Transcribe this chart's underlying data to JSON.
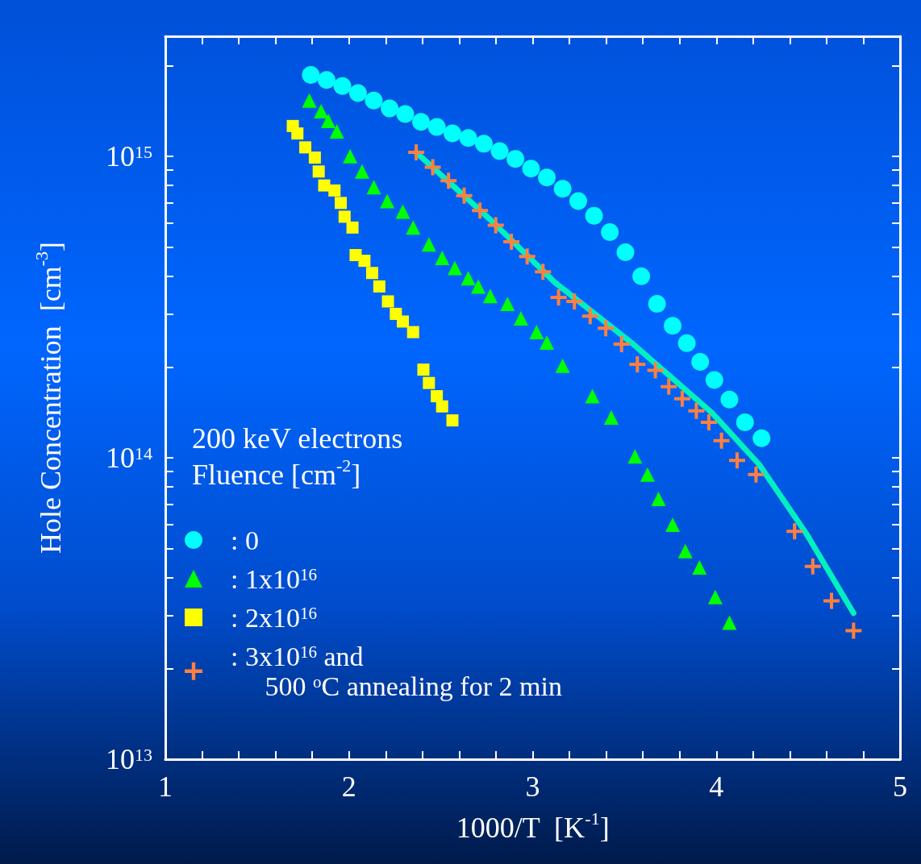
{
  "chart_data": {
    "type": "scatter",
    "xlabel": "1000/T  [K$^{-1}$]",
    "ylabel": "Hole Concentration  [cm$^{-3}$]",
    "legend_title": "200 keV electrons\nFluence [cm$^{-2}$]",
    "log": "y",
    "legend": "bottom left",
    "grid": false,
    "xlim": [
      1,
      5
    ],
    "xticks": [
      1,
      {
        "value": 1.2,
        "label": null
      },
      {
        "value": 1.4,
        "label": null
      },
      {
        "value": 1.6,
        "label": null
      },
      {
        "value": 1.8,
        "label": null
      },
      2,
      {
        "value": 2.2,
        "label": null
      },
      {
        "value": 2.4,
        "label": null
      },
      {
        "value": 2.6,
        "label": null
      },
      {
        "value": 2.8,
        "label": null
      },
      3,
      {
        "value": 3.2,
        "label": null
      },
      {
        "value": 3.4,
        "label": null
      },
      {
        "value": 3.6,
        "label": null
      },
      {
        "value": 3.8,
        "label": null
      },
      4,
      {
        "value": 4.2,
        "label": null
      },
      {
        "value": 4.4,
        "label": null
      },
      {
        "value": 4.6,
        "label": null
      },
      {
        "value": 4.8,
        "label": null
      },
      5
    ],
    "ylim": [
      10000000000000.0,
      2500000000000000.0
    ],
    "yticks": [
      {
        "value": 10000000000000.0,
        "label": "10$^{13}$"
      },
      {
        "value": 20000000000000.0,
        "label": null
      },
      {
        "value": 30000000000000.0,
        "label": null
      },
      {
        "value": 40000000000000.0,
        "label": null
      },
      {
        "value": 50000000000000.0,
        "label": null
      },
      {
        "value": 60000000000000.0,
        "label": null
      },
      {
        "value": 70000000000000.0,
        "label": null
      },
      {
        "value": 80000000000000.0,
        "label": null
      },
      {
        "value": 90000000000000.0,
        "label": null
      },
      {
        "value": 100000000000000.0,
        "label": "10$^{14}$"
      },
      {
        "value": 200000000000000.0,
        "label": null
      },
      {
        "value": 300000000000000.0,
        "label": null
      },
      {
        "value": 400000000000000.0,
        "label": null
      },
      {
        "value": 500000000000000.0,
        "label": null
      },
      {
        "value": 600000000000000.0,
        "label": null
      },
      {
        "value": 700000000000000.0,
        "label": null
      },
      {
        "value": 800000000000000.0,
        "label": null
      },
      {
        "value": 900000000000000.0,
        "label": null
      },
      {
        "value": 1000000000000000.0,
        "label": "10$^{15}$"
      },
      {
        "value": 2000000000000000.0,
        "label": null
      }
    ],
    "series": [
      {
        "name": ": 0",
        "color": "#00ffff",
        "marker": "circle",
        "x": [
          1.792,
          1.878,
          1.964,
          2.049,
          2.135,
          2.221,
          2.306,
          2.392,
          2.478,
          2.563,
          2.649,
          2.734,
          2.82,
          2.906,
          2.991,
          3.077,
          3.163,
          3.248,
          3.334,
          3.42,
          3.505,
          3.591,
          3.677,
          3.762,
          3.839,
          3.912,
          3.989,
          4.071,
          4.156,
          4.246
        ],
        "values": [
          1860000000000000.0,
          1790000000000000.0,
          1710000000000000.0,
          1620000000000000.0,
          1530000000000000.0,
          1440000000000000.0,
          1380000000000000.0,
          1300000000000000.0,
          1250000000000000.0,
          1190000000000000.0,
          1150000000000000.0,
          1100000000000000.0,
          1040000000000000.0,
          980000000000000.0,
          910000000000000.0,
          850000000000000.0,
          780000000000000.0,
          710000000000000.0,
          635000000000000.0,
          560000000000000.0,
          480000000000000.0,
          400000000000000.0,
          324000000000000.0,
          274000000000000.0,
          240000000000000.0,
          208000000000000.0,
          181000000000000.0,
          156000000000000.0,
          131000000000000.0,
          116000000000000.0
        ]
      },
      {
        "name": ": 1x10$^{16}$",
        "color": "#00ff00",
        "marker": "triangle",
        "x": [
          1.784,
          1.848,
          1.887,
          1.934,
          2.006,
          2.071,
          2.135,
          2.208,
          2.293,
          2.349,
          2.435,
          2.507,
          2.576,
          2.649,
          2.704,
          2.769,
          2.863,
          2.936,
          3.021,
          3.077,
          3.163,
          3.325,
          3.428,
          3.557,
          3.625,
          3.685,
          3.762,
          3.831,
          3.908,
          3.994,
          4.071
        ],
        "values": [
          1530000000000000.0,
          1410000000000000.0,
          1310000000000000.0,
          1210000000000000.0,
          1000000000000000.0,
          890000000000000.0,
          790000000000000.0,
          710000000000000.0,
          655000000000000.0,
          580000000000000.0,
          510000000000000.0,
          460000000000000.0,
          426000000000000.0,
          394000000000000.0,
          370000000000000.0,
          344000000000000.0,
          324000000000000.0,
          290000000000000.0,
          261000000000000.0,
          241000000000000.0,
          202000000000000.0,
          160000000000000.0,
          136000000000000.0,
          101000000000000.0,
          88000000000000.0,
          73000000000000.0,
          60000000000000.0,
          49000000000000.0,
          43300000000000.0,
          34500000000000.0,
          28400000000000.0
        ]
      },
      {
        "name": ": 2x10$^{16}$",
        "color": "#ffff00",
        "marker": "square",
        "x": [
          1.694,
          1.719,
          1.762,
          1.814,
          1.835,
          1.865,
          1.921,
          1.955,
          1.976,
          2.019,
          2.036,
          2.084,
          2.126,
          2.165,
          2.212,
          2.255,
          2.293,
          2.349,
          2.405,
          2.435,
          2.478,
          2.507,
          2.563
        ],
        "values": [
          1260000000000000.0,
          1190000000000000.0,
          1070000000000000.0,
          990000000000000.0,
          890000000000000.0,
          800000000000000.0,
          770000000000000.0,
          700000000000000.0,
          630000000000000.0,
          580000000000000.0,
          470000000000000.0,
          450000000000000.0,
          410000000000000.0,
          370000000000000.0,
          330000000000000.0,
          300000000000000.0,
          283000000000000.0,
          261000000000000.0,
          196000000000000.0,
          177000000000000.0,
          160000000000000.0,
          148000000000000.0,
          133000000000000.0
        ]
      },
      {
        "name": ": 3x10$^{16}$ and\n     500 $^{o}$C annealing for 2 min",
        "color": "#ff8040",
        "marker": "cross",
        "x": [
          2.366,
          2.456,
          2.542,
          2.627,
          2.713,
          2.799,
          2.884,
          2.97,
          3.056,
          3.141,
          3.227,
          3.313,
          3.398,
          3.484,
          3.57,
          3.668,
          3.741,
          3.814,
          3.891,
          3.959,
          4.028,
          4.113,
          4.216,
          4.426,
          4.525,
          4.627,
          4.747
        ],
        "values": [
          1030000000000000.0,
          920000000000000.0,
          830000000000000.0,
          740000000000000.0,
          660000000000000.0,
          590000000000000.0,
          520000000000000.0,
          465000000000000.0,
          414000000000000.0,
          340000000000000.0,
          330000000000000.0,
          295000000000000.0,
          269000000000000.0,
          238000000000000.0,
          204000000000000.0,
          195000000000000.0,
          172000000000000.0,
          157000000000000.0,
          143000000000000.0,
          131000000000000.0,
          114000000000000.0,
          98000000000000.0,
          88000000000000.0,
          57000000000000.0,
          43600000000000.0,
          33500000000000.0,
          26700000000000.0
        ]
      },
      {
        "type": "line",
        "color": "#00f0c0",
        "marker": "none",
        "line_style": "solid",
        "x": [
          2.366,
          2.777,
          3.12,
          3.548,
          3.976,
          4.233,
          4.49,
          4.747
        ],
        "values": [
          1030000000000000.0,
          610000000000000.0,
          382000000000000.0,
          238000000000000.0,
          141000000000000.0,
          95000000000000.0,
          56000000000000.0,
          30500000000000.0
        ]
      }
    ]
  }
}
